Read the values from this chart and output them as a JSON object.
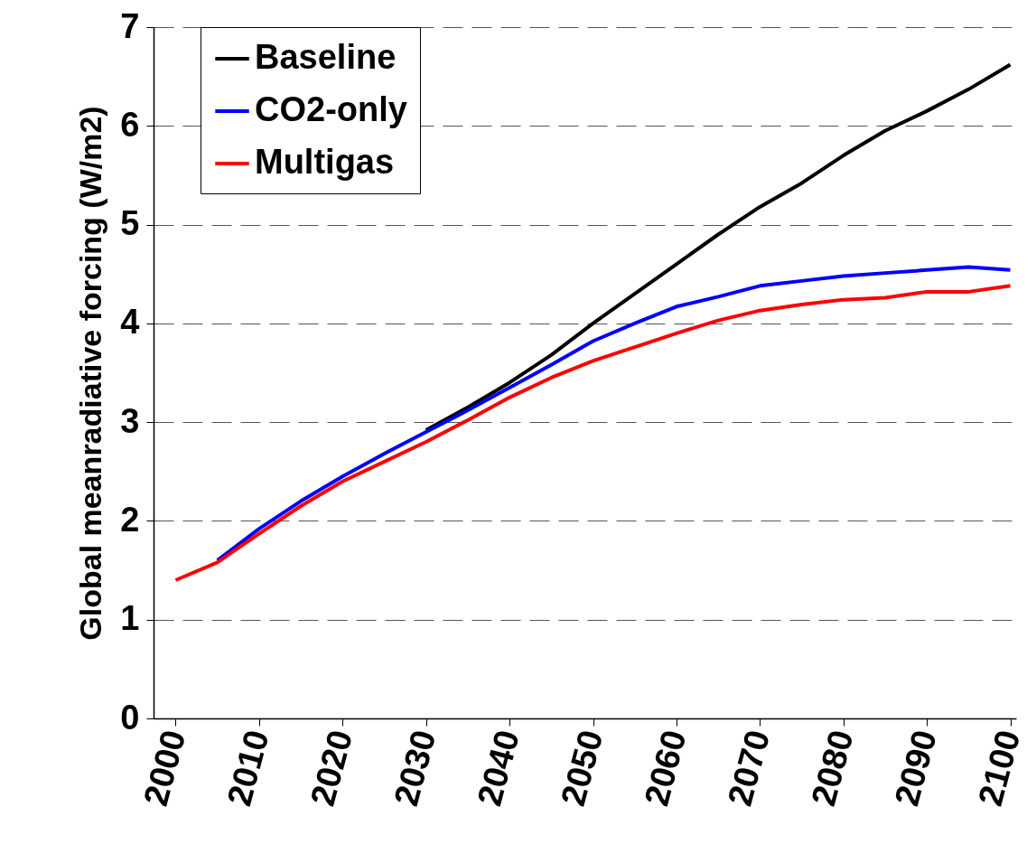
{
  "chart_data": {
    "type": "line",
    "ylabel": "Global meanradiative forcing (W/m2)",
    "x": [
      2000,
      2005,
      2010,
      2015,
      2020,
      2025,
      2030,
      2035,
      2040,
      2045,
      2050,
      2055,
      2060,
      2065,
      2070,
      2075,
      2080,
      2085,
      2090,
      2095,
      2100
    ],
    "series": [
      {
        "name": "Baseline",
        "color": "#000000",
        "values": [
          null,
          null,
          null,
          null,
          null,
          null,
          2.92,
          3.15,
          3.4,
          3.68,
          4.0,
          4.3,
          4.6,
          4.9,
          5.18,
          5.42,
          5.7,
          5.95,
          6.15,
          6.37,
          6.62
        ]
      },
      {
        "name": "CO2-only",
        "color": "#0000ff",
        "values": [
          null,
          1.6,
          1.92,
          2.2,
          2.45,
          2.68,
          2.9,
          3.12,
          3.35,
          3.58,
          3.82,
          4.0,
          4.17,
          4.27,
          4.38,
          4.43,
          4.48,
          4.51,
          4.54,
          4.57,
          4.54
        ]
      },
      {
        "name": "Multigas",
        "color": "#ff0000",
        "values": [
          1.4,
          1.58,
          1.87,
          2.15,
          2.4,
          2.6,
          2.8,
          3.02,
          3.25,
          3.45,
          3.62,
          3.76,
          3.9,
          4.03,
          4.13,
          4.19,
          4.24,
          4.26,
          4.32,
          4.32,
          4.38
        ]
      }
    ],
    "xlim": [
      1997.35,
      2100.7
    ],
    "xticks": [
      2000,
      2010,
      2020,
      2030,
      2040,
      2050,
      2060,
      2070,
      2080,
      2090,
      2100
    ],
    "ylim": [
      0,
      7
    ],
    "yticks": [
      0,
      1,
      2,
      3,
      4,
      5,
      6,
      7
    ],
    "grid": "y",
    "legend": "top left"
  }
}
